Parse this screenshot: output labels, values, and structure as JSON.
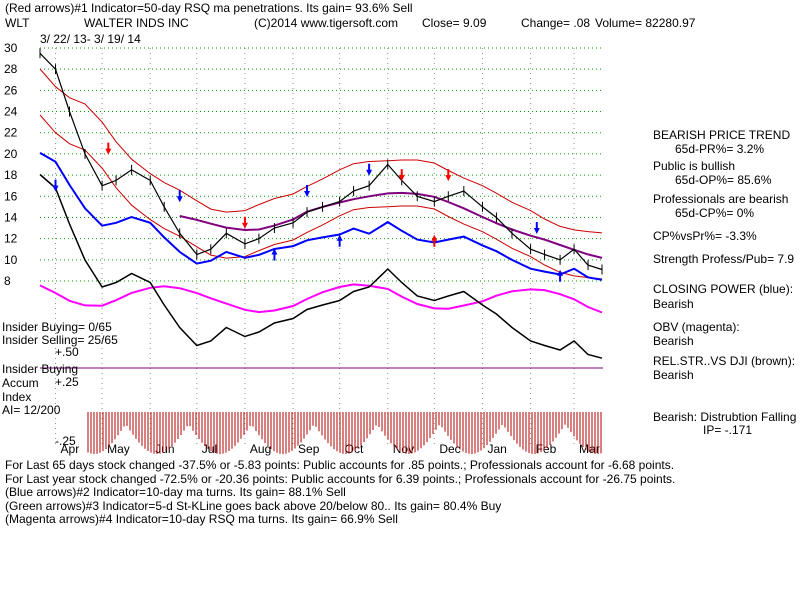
{
  "header": {
    "line1": "(Red arrows)#1 Indicator=50-day RSQ ma penetrations.  Its gain= 93.6% Sell",
    "ticker": "WLT",
    "company": "WALTER INDS INC",
    "copyright": "(C)2014 www.tigersoft.com",
    "close": "Close=  9.09",
    "change": "Change= .08",
    "volume": "Volume= 82280.97",
    "date_range": "3/ 22/ 13-  3/ 19/ 14"
  },
  "colors": {
    "price": "#000000",
    "ma_band": "#cc0000",
    "ma_mid": "#800080",
    "closing_power": "#0000ff",
    "obv": "#ff00ff",
    "relstr": "#000000",
    "grid": "#00a000",
    "accum_bar": "#b00000",
    "sell_arrow": "#ff0000",
    "blue_arrow": "#0000ff",
    "insider_line": "#800080"
  },
  "chart_data": {
    "type": "line",
    "title": "WALTER INDS INC",
    "x_months": [
      "Apr",
      "May",
      "Jun",
      "Jul",
      "Aug",
      "Sep",
      "Oct",
      "Nov",
      "Dec",
      "Jan",
      "Feb",
      "Mar"
    ],
    "y_ticks": [
      8,
      10,
      12,
      14,
      16,
      18,
      20,
      22,
      24,
      26,
      28,
      30
    ],
    "ylim": [
      8,
      30
    ],
    "grid": true,
    "series": [
      {
        "name": "Close",
        "x": [
          "2013-03-22",
          "2013-04-01",
          "2013-04-10",
          "2013-04-20",
          "2013-05-01",
          "2013-05-10",
          "2013-05-20",
          "2013-06-01",
          "2013-06-10",
          "2013-06-20",
          "2013-07-01",
          "2013-07-10",
          "2013-07-20",
          "2013-08-01",
          "2013-08-10",
          "2013-08-20",
          "2013-09-01",
          "2013-09-10",
          "2013-09-20",
          "2013-10-01",
          "2013-10-10",
          "2013-10-20",
          "2013-11-01",
          "2013-11-10",
          "2013-11-20",
          "2013-12-01",
          "2013-12-10",
          "2013-12-20",
          "2014-01-01",
          "2014-01-10",
          "2014-01-20",
          "2014-02-01",
          "2014-02-10",
          "2014-02-20",
          "2014-03-01",
          "2014-03-10",
          "2014-03-19"
        ],
        "y": [
          29.5,
          28.0,
          24.0,
          20.0,
          17.0,
          17.5,
          18.5,
          17.5,
          15.0,
          12.5,
          10.5,
          11.0,
          12.5,
          11.5,
          12.0,
          13.0,
          13.5,
          14.5,
          15.0,
          15.5,
          16.5,
          17.0,
          19.0,
          17.5,
          16.0,
          15.5,
          16.0,
          16.5,
          15.0,
          14.0,
          12.5,
          11.0,
          10.5,
          10.0,
          11.0,
          9.5,
          9.09
        ]
      }
    ],
    "xlabel": "",
    "ylabel": ""
  },
  "right_panel": {
    "trend_title": "BEARISH PRICE TREND",
    "pr": "65d-PR%= 3.2%",
    "public": "Public is bullish",
    "op": "65d-OP%= 85.6%",
    "professionals": "Professionals are bearish",
    "cp": "65d-CP%= 0%",
    "cpvspr": "CP%vsPr%= -3.3%",
    "strength": "Strength Profess/Pub= 7.9",
    "closing_power_label": "CLOSING POWER (blue):",
    "closing_power_value": "Bearish",
    "obv_label": "OBV (magenta):",
    "obv_value": "Bearish",
    "relstr_label": "REL.STR..VS DJI (brown):",
    "relstr_value": "Bearish",
    "accum_label": "Bearish:  Distrubtion Falling",
    "ip": "IP= -.171"
  },
  "left_panel": {
    "insider_buying": "Insider Buying= 0/65",
    "insider_selling": "Insider Selling= 25/65",
    "plus50": "+.50",
    "insider_buying2": "Insider Buying",
    "accum": "Accum",
    "plus25": "+.25",
    "index": "Index",
    "ai": "AI= 12/200",
    "minus25": "-.25"
  },
  "footer": {
    "line1": "For Last 65 days stock changed -37.5% or -5.83 points:  Public accounts for  .85 points.;  Professionals account for -6.68 points.",
    "line2": "For Last year stock changed -72.5% or -20.36 points:  Public accounts for  6.39 points.;  Professionals account for -26.75 points.",
    "line3": "(Blue arrows)#2 Indicator=10-day ma turns.  Its gain= 88.1% Sell",
    "line4": "(Green arrows)#3 Indicator=5-d St-KLine goes back above 20/below 80..  Its gain= 80.4% Buy",
    "line5": "(Magenta arrows)#4 Indicator=10-day RSQ ma turns.  Its gain= 66.9% Sell"
  }
}
